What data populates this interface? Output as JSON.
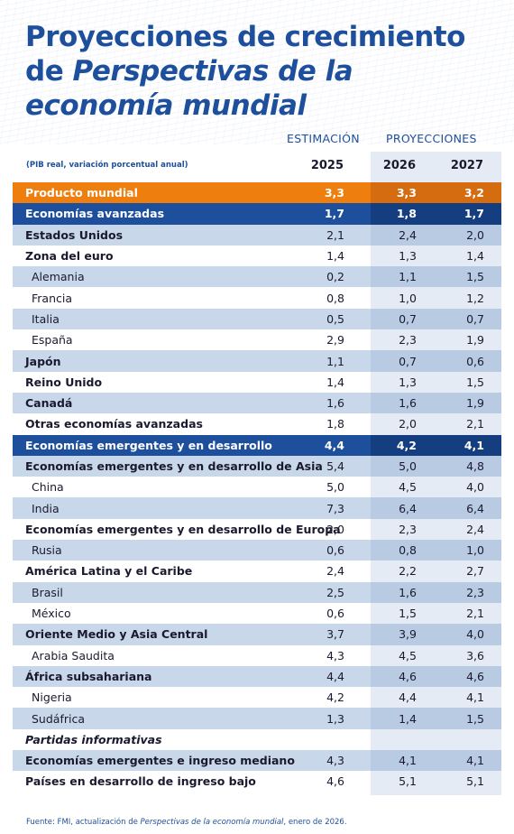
{
  "title": {
    "line1": "Proyecciones de crecimiento",
    "line2_pre": "de ",
    "line2_italic": "Perspectivas de la",
    "line3_italic": "economía mundial"
  },
  "headers": {
    "estimate": "ESTIMACIÓN",
    "projections": "PROYECCIONES",
    "note": "(PIB real, variación porcentual anual)",
    "years": [
      "2025",
      "2026",
      "2027"
    ]
  },
  "rows": [
    {
      "label": "Producto mundial",
      "values": [
        "3,3",
        "3,3",
        "3,2"
      ],
      "style": "world"
    },
    {
      "label": "Economías avanzadas",
      "values": [
        "1,7",
        "1,8",
        "1,7"
      ],
      "style": "dark"
    },
    {
      "label": "Estados Unidos",
      "values": [
        "2,1",
        "2,4",
        "2,0"
      ],
      "style": "alt group"
    },
    {
      "label": "Zona del euro",
      "values": [
        "1,4",
        "1,3",
        "1,4"
      ],
      "style": "group"
    },
    {
      "label": "Alemania",
      "values": [
        "0,2",
        "1,1",
        "1,5"
      ],
      "style": "alt sub"
    },
    {
      "label": "Francia",
      "values": [
        "0,8",
        "1,0",
        "1,2"
      ],
      "style": "sub"
    },
    {
      "label": "Italia",
      "values": [
        "0,5",
        "0,7",
        "0,7"
      ],
      "style": "alt sub"
    },
    {
      "label": "España",
      "values": [
        "2,9",
        "2,3",
        "1,9"
      ],
      "style": "sub"
    },
    {
      "label": "Japón",
      "values": [
        "1,1",
        "0,7",
        "0,6"
      ],
      "style": "alt group"
    },
    {
      "label": "Reino Unido",
      "values": [
        "1,4",
        "1,3",
        "1,5"
      ],
      "style": "group"
    },
    {
      "label": "Canadá",
      "values": [
        "1,6",
        "1,6",
        "1,9"
      ],
      "style": "alt group"
    },
    {
      "label": "Otras economías avanzadas",
      "values": [
        "1,8",
        "2,0",
        "2,1"
      ],
      "style": "group"
    },
    {
      "label": "Economías emergentes y en desarrollo",
      "values": [
        "4,4",
        "4,2",
        "4,1"
      ],
      "style": "dark"
    },
    {
      "label": "Economías emergentes y en desarrollo de Asia",
      "values": [
        "5,4",
        "5,0",
        "4,8"
      ],
      "style": "alt group"
    },
    {
      "label": "China",
      "values": [
        "5,0",
        "4,5",
        "4,0"
      ],
      "style": "sub"
    },
    {
      "label": "India",
      "values": [
        "7,3",
        "6,4",
        "6,4"
      ],
      "style": "alt sub"
    },
    {
      "label": "Economías emergentes y en desarrollo de Europa",
      "values": [
        "2,0",
        "2,3",
        "2,4"
      ],
      "style": "group"
    },
    {
      "label": "Rusia",
      "values": [
        "0,6",
        "0,8",
        "1,0"
      ],
      "style": "alt sub"
    },
    {
      "label": "América Latina y el Caribe",
      "values": [
        "2,4",
        "2,2",
        "2,7"
      ],
      "style": "group"
    },
    {
      "label": "Brasil",
      "values": [
        "2,5",
        "1,6",
        "2,3"
      ],
      "style": "alt sub"
    },
    {
      "label": "México",
      "values": [
        "0,6",
        "1,5",
        "2,1"
      ],
      "style": "sub"
    },
    {
      "label": "Oriente Medio y Asia Central",
      "values": [
        "3,7",
        "3,9",
        "4,0"
      ],
      "style": "alt group"
    },
    {
      "label": "Arabia Saudita",
      "values": [
        "4,3",
        "4,5",
        "3,6"
      ],
      "style": "sub"
    },
    {
      "label": "África subsahariana",
      "values": [
        "4,4",
        "4,6",
        "4,6"
      ],
      "style": "alt group"
    },
    {
      "label": "Nigeria",
      "values": [
        "4,2",
        "4,4",
        "4,1"
      ],
      "style": "sub"
    },
    {
      "label": "Sudáfrica",
      "values": [
        "1,3",
        "1,4",
        "1,5"
      ],
      "style": "alt sub"
    },
    {
      "label": "Partidas informativas",
      "values": [
        "",
        "",
        ""
      ],
      "style": "italic"
    },
    {
      "label": "Economías emergentes e ingreso mediano",
      "values": [
        "4,3",
        "4,1",
        "4,1"
      ],
      "style": "alt group"
    },
    {
      "label": "Países en desarrollo de ingreso bajo",
      "values": [
        "4,6",
        "5,1",
        "5,1"
      ],
      "style": "group"
    }
  ],
  "source": {
    "pre": "Fuente: FMI, actualización de ",
    "italic": "Perspectivas de la economía mundial",
    "post": ", enero de 2026."
  }
}
